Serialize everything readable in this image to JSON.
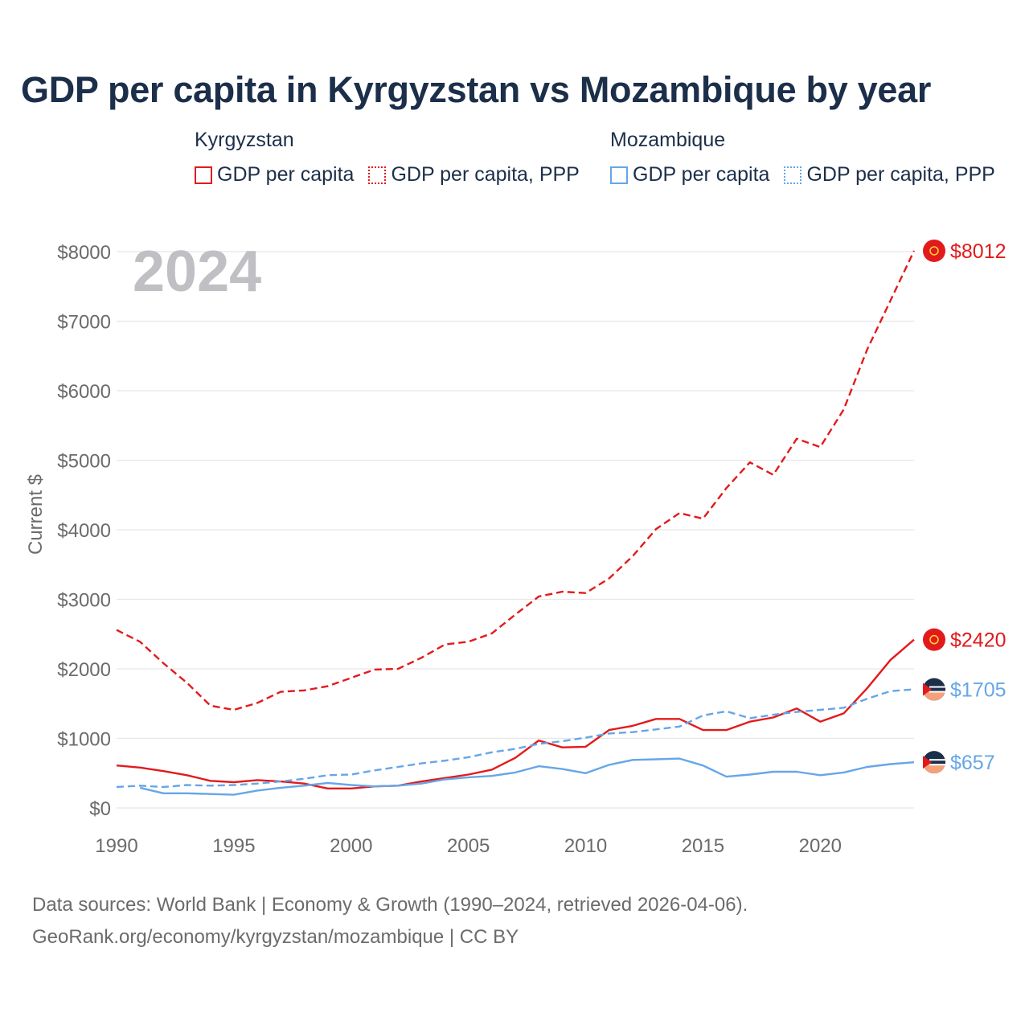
{
  "title": "GDP per capita in Kyrgyzstan vs Mozambique by year",
  "legend": {
    "groups": [
      {
        "country": "Kyrgyzstan",
        "color": "#e31a1c",
        "items": [
          {
            "label": "GDP per capita",
            "style": "solid"
          },
          {
            "label": "GDP per capita, PPP",
            "style": "dotted"
          }
        ]
      },
      {
        "country": "Mozambique",
        "color": "#66a6e8",
        "items": [
          {
            "label": "GDP per capita",
            "style": "solid"
          },
          {
            "label": "GDP per capita, PPP",
            "style": "dotted"
          }
        ]
      }
    ]
  },
  "year_watermark": "2024",
  "chart_data": {
    "type": "line",
    "ylabel": "Current $",
    "xlabel": "",
    "xlim": [
      1990,
      2024
    ],
    "ylim": [
      0,
      8000
    ],
    "x_ticks": [
      1990,
      1995,
      2000,
      2005,
      2010,
      2015,
      2020
    ],
    "y_ticks": [
      0,
      1000,
      2000,
      3000,
      4000,
      5000,
      6000,
      7000,
      8000
    ],
    "y_tick_labels": [
      "$0",
      "$1000",
      "$2000",
      "$3000",
      "$4000",
      "$5000",
      "$6000",
      "$7000",
      "$8000"
    ],
    "x": [
      1990,
      1991,
      1992,
      1993,
      1994,
      1995,
      1996,
      1997,
      1998,
      1999,
      2000,
      2001,
      2002,
      2003,
      2004,
      2005,
      2006,
      2007,
      2008,
      2009,
      2010,
      2011,
      2012,
      2013,
      2014,
      2015,
      2016,
      2017,
      2018,
      2019,
      2020,
      2021,
      2022,
      2023,
      2024
    ],
    "series": [
      {
        "name": "Kyrgyzstan GDP per capita, PPP",
        "color": "#e31a1c",
        "dash": "dashed",
        "values": [
          2560,
          2390,
          2080,
          1800,
          1470,
          1410,
          1510,
          1670,
          1690,
          1750,
          1870,
          1990,
          2000,
          2160,
          2350,
          2390,
          2510,
          2780,
          3040,
          3110,
          3090,
          3300,
          3620,
          4010,
          4240,
          4160,
          4600,
          4970,
          4790,
          5310,
          5190,
          5730,
          6590,
          7300,
          8012
        ],
        "end_label": "$8012"
      },
      {
        "name": "Kyrgyzstan GDP per capita",
        "color": "#e31a1c",
        "dash": "solid",
        "values": [
          610,
          580,
          530,
          470,
          390,
          370,
          400,
          380,
          350,
          280,
          280,
          310,
          320,
          380,
          430,
          480,
          550,
          720,
          970,
          870,
          880,
          1120,
          1180,
          1280,
          1280,
          1120,
          1120,
          1240,
          1300,
          1430,
          1240,
          1360,
          1720,
          2130,
          2420
        ],
        "end_label": "$2420"
      },
      {
        "name": "Mozambique GDP per capita, PPP",
        "color": "#66a6e8",
        "dash": "dashed",
        "values": [
          300,
          320,
          300,
          330,
          320,
          330,
          350,
          380,
          420,
          470,
          480,
          540,
          590,
          640,
          680,
          730,
          800,
          850,
          920,
          960,
          1010,
          1070,
          1090,
          1130,
          1170,
          1330,
          1390,
          1290,
          1340,
          1380,
          1410,
          1440,
          1570,
          1680,
          1705
        ],
        "end_label": "$1705"
      },
      {
        "name": "Mozambique GDP per capita",
        "color": "#66a6e8",
        "dash": "solid",
        "values": [
          null,
          290,
          210,
          210,
          200,
          190,
          250,
          290,
          320,
          360,
          330,
          310,
          320,
          350,
          410,
          440,
          460,
          510,
          600,
          560,
          500,
          620,
          690,
          700,
          710,
          610,
          450,
          480,
          520,
          520,
          470,
          510,
          590,
          630,
          657
        ],
        "end_label": "$657"
      }
    ]
  },
  "footer": {
    "line1": "Data sources: World Bank | Economy & Growth (1990–2024, retrieved 2026-04-06).",
    "line2": "GeoRank.org/economy/kyrgyzstan/mozambique | CC BY"
  }
}
